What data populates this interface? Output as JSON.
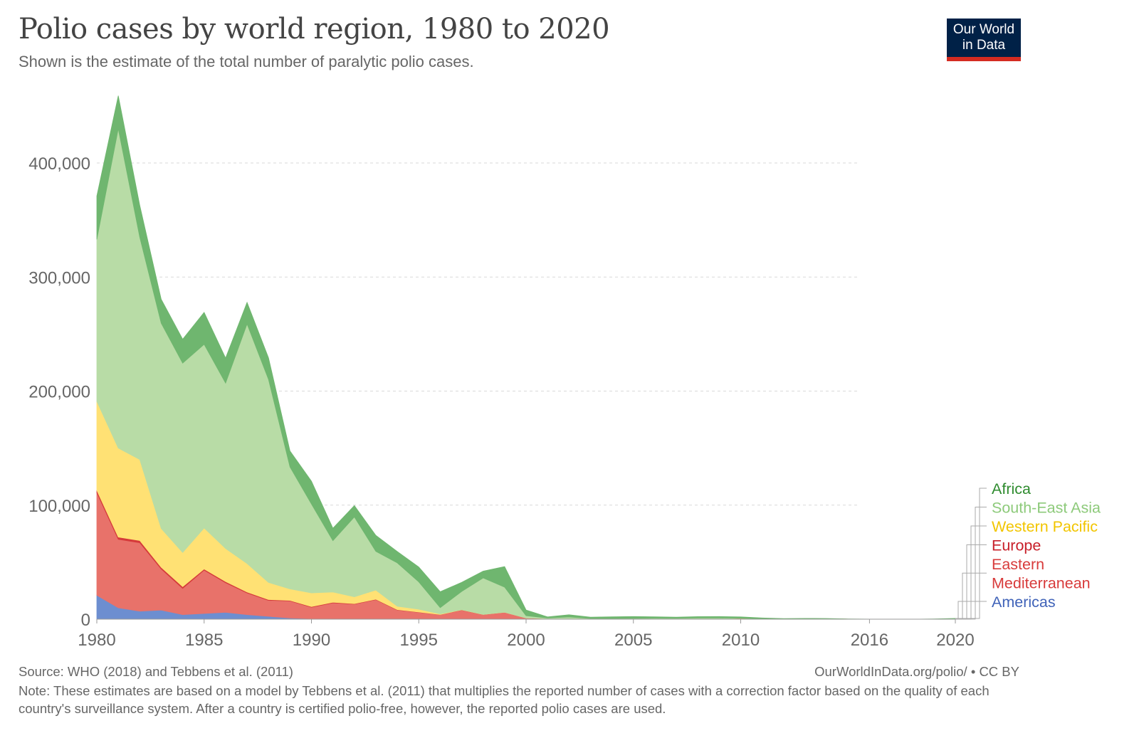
{
  "header": {
    "title": "Polio cases by world region, 1980 to 2020",
    "subtitle": "Shown is the estimate of the total number of paralytic polio cases.",
    "logo_line1": "Our World",
    "logo_line2": "in Data"
  },
  "footer": {
    "source": "Source: WHO (2018) and Tebbens et al. (2011)",
    "url": "OurWorldInData.org/polio/ • CC BY",
    "note": "Note: These estimates are based on a model by Tebbens et al. (2011) that multiplies the reported number of cases with a correction factor based on the quality of each country's surveillance system. After a country is certified polio-free, however, the reported polio cases are used."
  },
  "chart_data": {
    "type": "area",
    "stacked": true,
    "x": [
      1980,
      1981,
      1982,
      1983,
      1984,
      1985,
      1986,
      1987,
      1988,
      1989,
      1990,
      1991,
      1992,
      1993,
      1994,
      1995,
      1996,
      1997,
      1998,
      1999,
      2000,
      2001,
      2002,
      2003,
      2004,
      2005,
      2006,
      2007,
      2008,
      2009,
      2010,
      2011,
      2012,
      2013,
      2014,
      2015,
      2016,
      2017,
      2018,
      2019,
      2020
    ],
    "x_ticks": [
      "1980",
      "1985",
      "1990",
      "1995",
      "2000",
      "2005",
      "2010",
      "2016",
      "2020"
    ],
    "y_ticks": [
      "0",
      "100,000",
      "200,000",
      "300,000",
      "400,000"
    ],
    "ylim": [
      0,
      460000
    ],
    "grid": true,
    "legend_placement": "right",
    "series": [
      {
        "name": "Americas",
        "color": "#6d8ed0",
        "values": [
          21000,
          10000,
          7000,
          8000,
          4000,
          5000,
          6000,
          4000,
          2500,
          1000,
          500,
          300,
          200,
          100,
          50,
          20,
          10,
          0,
          0,
          0,
          0,
          0,
          0,
          0,
          0,
          0,
          0,
          0,
          0,
          0,
          0,
          0,
          0,
          0,
          0,
          0,
          0,
          0,
          0,
          0,
          0
        ]
      },
      {
        "name": "Eastern Mediterranean",
        "color": "#e8726a",
        "values": [
          90000,
          60000,
          60000,
          36000,
          23000,
          38000,
          26000,
          19000,
          14000,
          15000,
          10000,
          14000,
          13000,
          17000,
          8000,
          6000,
          4000,
          8000,
          4000,
          6000,
          1000,
          500,
          400,
          300,
          300,
          300,
          200,
          200,
          400,
          300,
          300,
          300,
          200,
          200,
          400,
          100,
          50,
          20,
          20,
          50,
          50
        ]
      },
      {
        "name": "Europe",
        "color": "#d53a3a",
        "values": [
          2000,
          2000,
          2000,
          1500,
          1500,
          1000,
          1000,
          800,
          700,
          500,
          500,
          500,
          400,
          400,
          300,
          200,
          100,
          100,
          50,
          50,
          50,
          10,
          10,
          10,
          10,
          10,
          10,
          10,
          10,
          10,
          500,
          10,
          10,
          10,
          10,
          0,
          0,
          0,
          0,
          0,
          0
        ]
      },
      {
        "name": "Western Pacific",
        "color": "#ffe174",
        "values": [
          78000,
          78000,
          71000,
          34000,
          30000,
          36000,
          29000,
          25000,
          15000,
          10000,
          12000,
          9000,
          6000,
          8000,
          3000,
          2500,
          500,
          200,
          100,
          50,
          0,
          0,
          0,
          0,
          0,
          0,
          0,
          0,
          0,
          0,
          0,
          0,
          0,
          0,
          0,
          0,
          0,
          0,
          0,
          0,
          0
        ]
      },
      {
        "name": "South-East Asia",
        "color": "#b8dca6",
        "values": [
          142000,
          280000,
          195000,
          180000,
          166000,
          161000,
          145000,
          210000,
          178000,
          107000,
          78000,
          45000,
          70000,
          34000,
          38000,
          24000,
          5500,
          16000,
          32000,
          22000,
          2000,
          500,
          1500,
          300,
          300,
          400,
          700,
          600,
          700,
          800,
          100,
          0,
          0,
          0,
          0,
          0,
          0,
          0,
          0,
          0,
          0
        ]
      },
      {
        "name": "Africa",
        "color": "#6fb66f",
        "values": [
          38000,
          29000,
          28000,
          21000,
          21000,
          28000,
          22000,
          19000,
          19000,
          14000,
          20000,
          11000,
          10000,
          14000,
          10000,
          13000,
          14000,
          8000,
          6000,
          18000,
          5000,
          1000,
          2000,
          1200,
          1500,
          1600,
          1200,
          1000,
          1100,
          1200,
          1100,
          800,
          300,
          500,
          200,
          100,
          50,
          0,
          0,
          200,
          600
        ]
      }
    ]
  }
}
